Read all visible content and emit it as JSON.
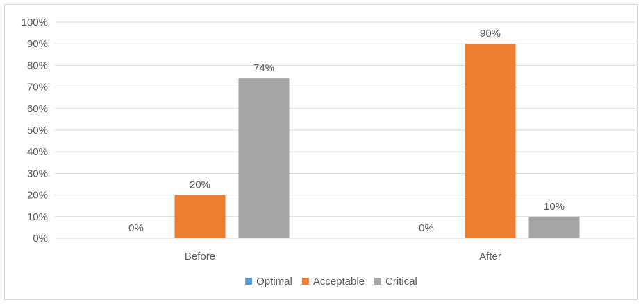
{
  "chart_data": {
    "type": "bar",
    "categories": [
      "Before",
      "After"
    ],
    "series": [
      {
        "name": "Optimal",
        "color": "#5b9bd5",
        "values": [
          0,
          0
        ],
        "labels": [
          "0%",
          "0%"
        ]
      },
      {
        "name": "Acceptable",
        "color": "#ed7d31",
        "values": [
          20,
          90
        ],
        "labels": [
          "20%",
          "90%"
        ]
      },
      {
        "name": "Critical",
        "color": "#a5a5a5",
        "values": [
          74,
          10
        ],
        "labels": [
          "74%",
          "10%"
        ]
      }
    ],
    "ylim": [
      0,
      100
    ],
    "yticks": [
      "0%",
      "10%",
      "20%",
      "30%",
      "40%",
      "50%",
      "60%",
      "70%",
      "80%",
      "90%",
      "100%"
    ],
    "grid": true,
    "legend_position": "bottom"
  }
}
